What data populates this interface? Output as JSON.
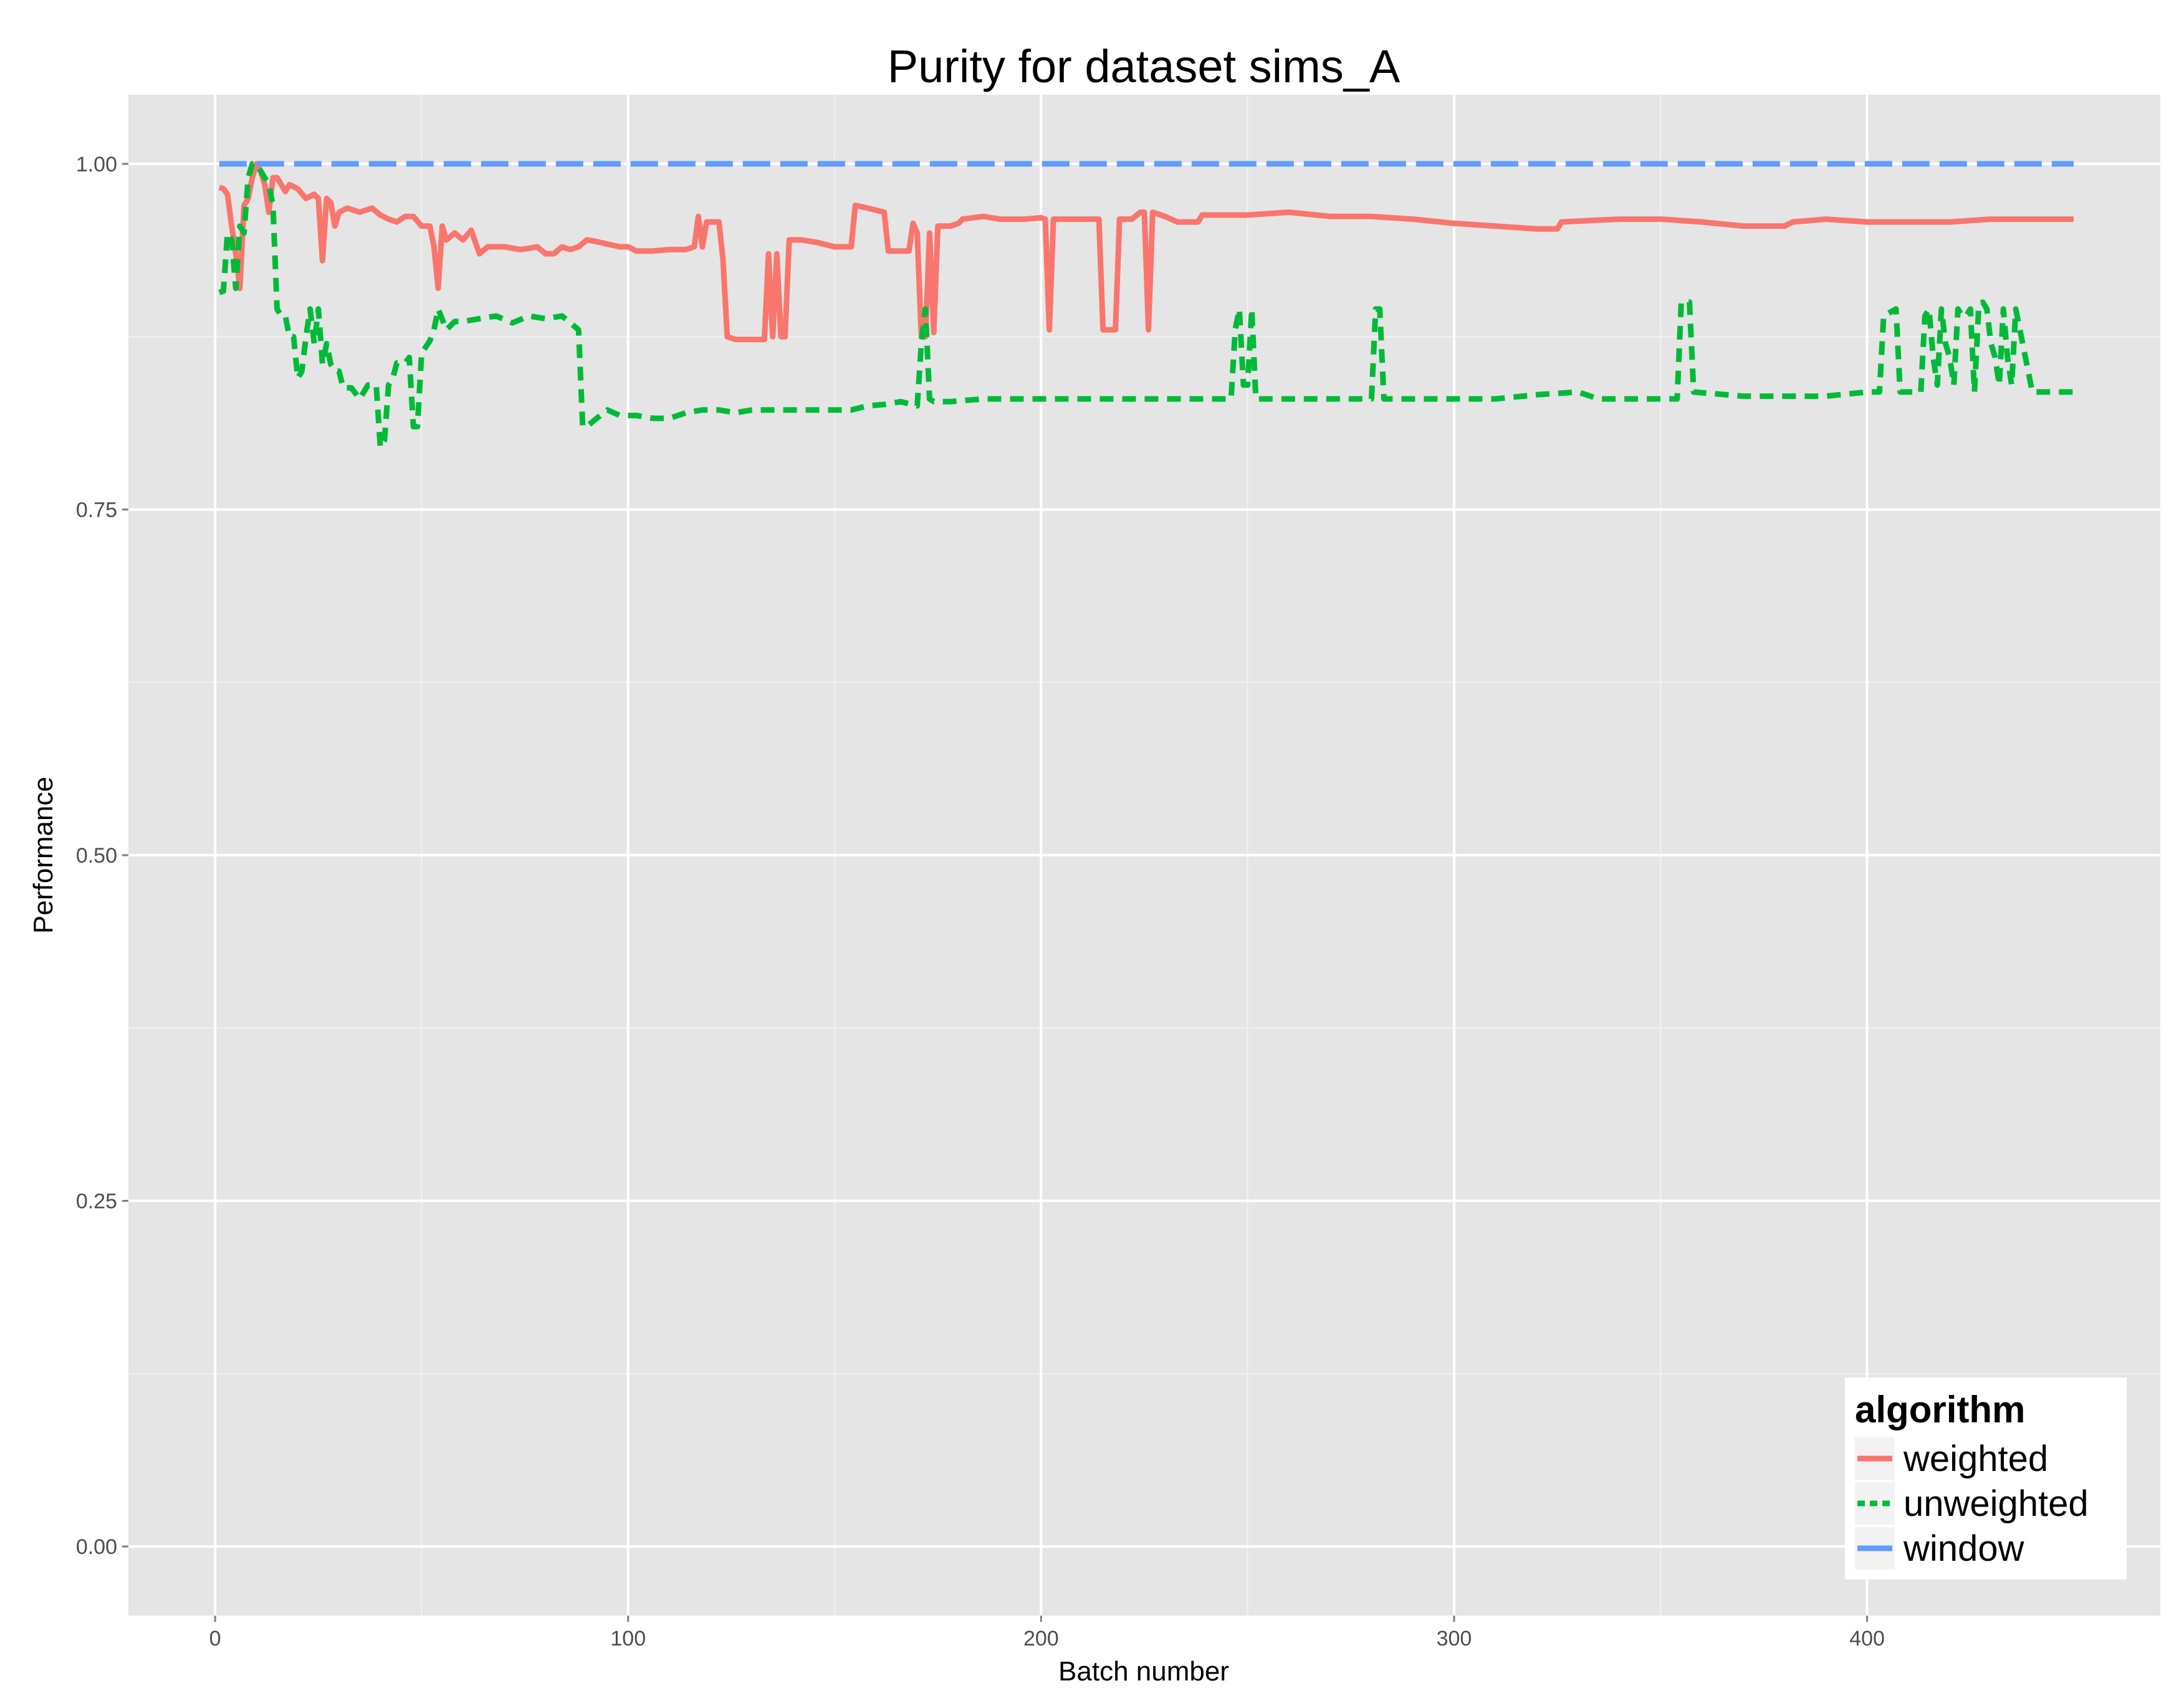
{
  "chart_data": {
    "type": "line",
    "title": "Purity for dataset sims_A",
    "xlabel": "Batch number",
    "ylabel": "Performance",
    "xlim": [
      -21,
      471
    ],
    "ylim": [
      -0.05,
      1.05
    ],
    "x_ticks": [
      0,
      100,
      200,
      300,
      400
    ],
    "x_tick_labels": [
      "0",
      "100",
      "200",
      "300",
      "400"
    ],
    "y_ticks": [
      0,
      0.25,
      0.5,
      0.75,
      1.0
    ],
    "y_tick_labels": [
      "0.00",
      "0.25",
      "0.50",
      "0.75",
      "1.00"
    ],
    "grid": true,
    "legend": {
      "title": "algorithm",
      "position": "bottom-right"
    },
    "series": [
      {
        "name": "weighted",
        "color": "#F8766D",
        "dash": "solid",
        "points": [
          [
            1,
            0.983
          ],
          [
            2,
            0.982
          ],
          [
            3,
            0.978
          ],
          [
            4,
            0.955
          ],
          [
            5,
            0.935
          ],
          [
            6,
            0.91
          ],
          [
            7,
            0.97
          ],
          [
            8,
            0.975
          ],
          [
            9,
            0.99
          ],
          [
            10,
            1.0
          ],
          [
            11,
            0.995
          ],
          [
            12,
            0.985
          ],
          [
            13,
            0.965
          ],
          [
            14,
            0.99
          ],
          [
            15,
            0.99
          ],
          [
            16,
            0.985
          ],
          [
            17,
            0.98
          ],
          [
            18,
            0.985
          ],
          [
            20,
            0.982
          ],
          [
            22,
            0.975
          ],
          [
            24,
            0.978
          ],
          [
            25,
            0.975
          ],
          [
            26,
            0.93
          ],
          [
            27,
            0.975
          ],
          [
            28,
            0.972
          ],
          [
            29,
            0.955
          ],
          [
            30,
            0.965
          ],
          [
            32,
            0.968
          ],
          [
            35,
            0.965
          ],
          [
            38,
            0.968
          ],
          [
            40,
            0.963
          ],
          [
            42,
            0.96
          ],
          [
            44,
            0.958
          ],
          [
            46,
            0.962
          ],
          [
            48,
            0.962
          ],
          [
            50,
            0.955
          ],
          [
            52,
            0.955
          ],
          [
            53,
            0.94
          ],
          [
            54,
            0.91
          ],
          [
            55,
            0.955
          ],
          [
            56,
            0.945
          ],
          [
            58,
            0.95
          ],
          [
            60,
            0.945
          ],
          [
            62,
            0.952
          ],
          [
            64,
            0.935
          ],
          [
            66,
            0.94
          ],
          [
            70,
            0.94
          ],
          [
            74,
            0.938
          ],
          [
            78,
            0.94
          ],
          [
            80,
            0.935
          ],
          [
            82,
            0.935
          ],
          [
            84,
            0.94
          ],
          [
            86,
            0.938
          ],
          [
            88,
            0.94
          ],
          [
            90,
            0.945
          ],
          [
            92,
            0.944
          ],
          [
            95,
            0.942
          ],
          [
            98,
            0.94
          ],
          [
            100,
            0.94
          ],
          [
            102,
            0.937
          ],
          [
            106,
            0.937
          ],
          [
            110,
            0.938
          ],
          [
            114,
            0.938
          ],
          [
            116,
            0.94
          ],
          [
            117,
            0.962
          ],
          [
            118,
            0.94
          ],
          [
            119,
            0.958
          ],
          [
            122,
            0.958
          ],
          [
            123,
            0.93
          ],
          [
            124,
            0.875
          ],
          [
            126,
            0.873
          ],
          [
            130,
            0.873
          ],
          [
            133,
            0.873
          ],
          [
            134,
            0.935
          ],
          [
            135,
            0.875
          ],
          [
            136,
            0.935
          ],
          [
            137,
            0.875
          ],
          [
            138,
            0.875
          ],
          [
            139,
            0.945
          ],
          [
            142,
            0.945
          ],
          [
            146,
            0.943
          ],
          [
            150,
            0.94
          ],
          [
            154,
            0.94
          ],
          [
            155,
            0.97
          ],
          [
            158,
            0.968
          ],
          [
            162,
            0.965
          ],
          [
            163,
            0.937
          ],
          [
            168,
            0.937
          ],
          [
            169,
            0.957
          ],
          [
            170,
            0.95
          ],
          [
            171,
            0.875
          ],
          [
            172,
            0.875
          ],
          [
            173,
            0.95
          ],
          [
            174,
            0.878
          ],
          [
            175,
            0.955
          ],
          [
            178,
            0.955
          ],
          [
            180,
            0.957
          ],
          [
            181,
            0.96
          ],
          [
            186,
            0.962
          ],
          [
            190,
            0.96
          ],
          [
            196,
            0.96
          ],
          [
            200,
            0.961
          ],
          [
            201,
            0.96
          ],
          [
            202,
            0.88
          ],
          [
            203,
            0.96
          ],
          [
            206,
            0.96
          ],
          [
            210,
            0.96
          ],
          [
            214,
            0.96
          ],
          [
            215,
            0.88
          ],
          [
            218,
            0.88
          ],
          [
            219,
            0.96
          ],
          [
            222,
            0.96
          ],
          [
            224,
            0.965
          ],
          [
            225,
            0.965
          ],
          [
            226,
            0.88
          ],
          [
            227,
            0.965
          ],
          [
            230,
            0.962
          ],
          [
            233,
            0.958
          ],
          [
            236,
            0.958
          ],
          [
            238,
            0.958
          ],
          [
            239,
            0.963
          ],
          [
            250,
            0.963
          ],
          [
            260,
            0.965
          ],
          [
            270,
            0.962
          ],
          [
            280,
            0.962
          ],
          [
            290,
            0.96
          ],
          [
            300,
            0.957
          ],
          [
            310,
            0.955
          ],
          [
            320,
            0.953
          ],
          [
            325,
            0.953
          ],
          [
            326,
            0.958
          ],
          [
            340,
            0.96
          ],
          [
            350,
            0.96
          ],
          [
            360,
            0.958
          ],
          [
            370,
            0.955
          ],
          [
            380,
            0.955
          ],
          [
            382,
            0.958
          ],
          [
            390,
            0.96
          ],
          [
            400,
            0.958
          ],
          [
            410,
            0.958
          ],
          [
            420,
            0.958
          ],
          [
            430,
            0.96
          ],
          [
            440,
            0.96
          ],
          [
            450,
            0.96
          ]
        ]
      },
      {
        "name": "unweighted",
        "color": "#00BA38",
        "dash": "dashed",
        "points": [
          [
            1,
            0.907
          ],
          [
            2,
            0.908
          ],
          [
            3,
            0.95
          ],
          [
            4,
            0.945
          ],
          [
            5,
            0.91
          ],
          [
            6,
            0.955
          ],
          [
            7,
            0.95
          ],
          [
            8,
            0.99
          ],
          [
            9,
            1.0
          ],
          [
            10,
            1.0
          ],
          [
            11,
            0.995
          ],
          [
            12,
            0.99
          ],
          [
            13,
            0.985
          ],
          [
            14,
            0.97
          ],
          [
            15,
            0.895
          ],
          [
            16,
            0.89
          ],
          [
            17,
            0.89
          ],
          [
            18,
            0.875
          ],
          [
            19,
            0.875
          ],
          [
            20,
            0.845
          ],
          [
            21,
            0.85
          ],
          [
            22,
            0.875
          ],
          [
            23,
            0.895
          ],
          [
            24,
            0.87
          ],
          [
            25,
            0.895
          ],
          [
            26,
            0.855
          ],
          [
            27,
            0.87
          ],
          [
            28,
            0.855
          ],
          [
            29,
            0.85
          ],
          [
            30,
            0.85
          ],
          [
            31,
            0.838
          ],
          [
            33,
            0.838
          ],
          [
            35,
            0.83
          ],
          [
            37,
            0.84
          ],
          [
            39,
            0.84
          ],
          [
            40,
            0.795
          ],
          [
            41,
            0.8
          ],
          [
            42,
            0.84
          ],
          [
            43,
            0.845
          ],
          [
            44,
            0.856
          ],
          [
            46,
            0.856
          ],
          [
            47,
            0.86
          ],
          [
            48,
            0.81
          ],
          [
            49,
            0.81
          ],
          [
            50,
            0.863
          ],
          [
            52,
            0.872
          ],
          [
            53,
            0.88
          ],
          [
            54,
            0.895
          ],
          [
            56,
            0.88
          ],
          [
            58,
            0.886
          ],
          [
            60,
            0.886
          ],
          [
            64,
            0.888
          ],
          [
            68,
            0.89
          ],
          [
            72,
            0.885
          ],
          [
            76,
            0.89
          ],
          [
            80,
            0.888
          ],
          [
            84,
            0.89
          ],
          [
            88,
            0.88
          ],
          [
            89,
            0.81
          ],
          [
            90,
            0.81
          ],
          [
            92,
            0.815
          ],
          [
            95,
            0.822
          ],
          [
            98,
            0.818
          ],
          [
            102,
            0.818
          ],
          [
            106,
            0.816
          ],
          [
            110,
            0.816
          ],
          [
            114,
            0.82
          ],
          [
            118,
            0.822
          ],
          [
            122,
            0.822
          ],
          [
            126,
            0.82
          ],
          [
            130,
            0.822
          ],
          [
            136,
            0.822
          ],
          [
            142,
            0.822
          ],
          [
            148,
            0.822
          ],
          [
            154,
            0.822
          ],
          [
            158,
            0.825
          ],
          [
            162,
            0.826
          ],
          [
            166,
            0.828
          ],
          [
            170,
            0.825
          ],
          [
            171,
            0.87
          ],
          [
            172,
            0.895
          ],
          [
            173,
            0.83
          ],
          [
            174,
            0.828
          ],
          [
            178,
            0.828
          ],
          [
            186,
            0.83
          ],
          [
            194,
            0.83
          ],
          [
            200,
            0.83
          ],
          [
            210,
            0.83
          ],
          [
            220,
            0.83
          ],
          [
            230,
            0.83
          ],
          [
            240,
            0.83
          ],
          [
            246,
            0.83
          ],
          [
            247,
            0.88
          ],
          [
            248,
            0.895
          ],
          [
            249,
            0.84
          ],
          [
            250,
            0.84
          ],
          [
            251,
            0.895
          ],
          [
            252,
            0.83
          ],
          [
            260,
            0.83
          ],
          [
            270,
            0.83
          ],
          [
            280,
            0.83
          ],
          [
            281,
            0.895
          ],
          [
            282,
            0.895
          ],
          [
            283,
            0.83
          ],
          [
            290,
            0.83
          ],
          [
            300,
            0.83
          ],
          [
            310,
            0.83
          ],
          [
            320,
            0.833
          ],
          [
            330,
            0.835
          ],
          [
            335,
            0.83
          ],
          [
            340,
            0.83
          ],
          [
            350,
            0.83
          ],
          [
            354,
            0.83
          ],
          [
            355,
            0.9
          ],
          [
            357,
            0.9
          ],
          [
            358,
            0.835
          ],
          [
            370,
            0.832
          ],
          [
            380,
            0.832
          ],
          [
            390,
            0.832
          ],
          [
            400,
            0.835
          ],
          [
            403,
            0.835
          ],
          [
            404,
            0.89
          ],
          [
            407,
            0.895
          ],
          [
            408,
            0.835
          ],
          [
            410,
            0.835
          ],
          [
            413,
            0.835
          ],
          [
            414,
            0.89
          ],
          [
            415,
            0.895
          ],
          [
            416,
            0.86
          ],
          [
            417,
            0.84
          ],
          [
            418,
            0.895
          ],
          [
            419,
            0.87
          ],
          [
            420,
            0.86
          ],
          [
            421,
            0.84
          ],
          [
            422,
            0.895
          ],
          [
            423,
            0.89
          ],
          [
            424,
            0.89
          ],
          [
            425,
            0.895
          ],
          [
            426,
            0.835
          ],
          [
            427,
            0.895
          ],
          [
            428,
            0.9
          ],
          [
            429,
            0.895
          ],
          [
            430,
            0.87
          ],
          [
            431,
            0.86
          ],
          [
            432,
            0.84
          ],
          [
            433,
            0.895
          ],
          [
            434,
            0.86
          ],
          [
            435,
            0.84
          ],
          [
            436,
            0.895
          ],
          [
            440,
            0.835
          ],
          [
            445,
            0.835
          ],
          [
            450,
            0.835
          ]
        ]
      },
      {
        "name": "window",
        "color": "#619CFF",
        "dash": "longdash",
        "points": [
          [
            1,
            1.0
          ],
          [
            450,
            1.0
          ]
        ]
      }
    ]
  }
}
